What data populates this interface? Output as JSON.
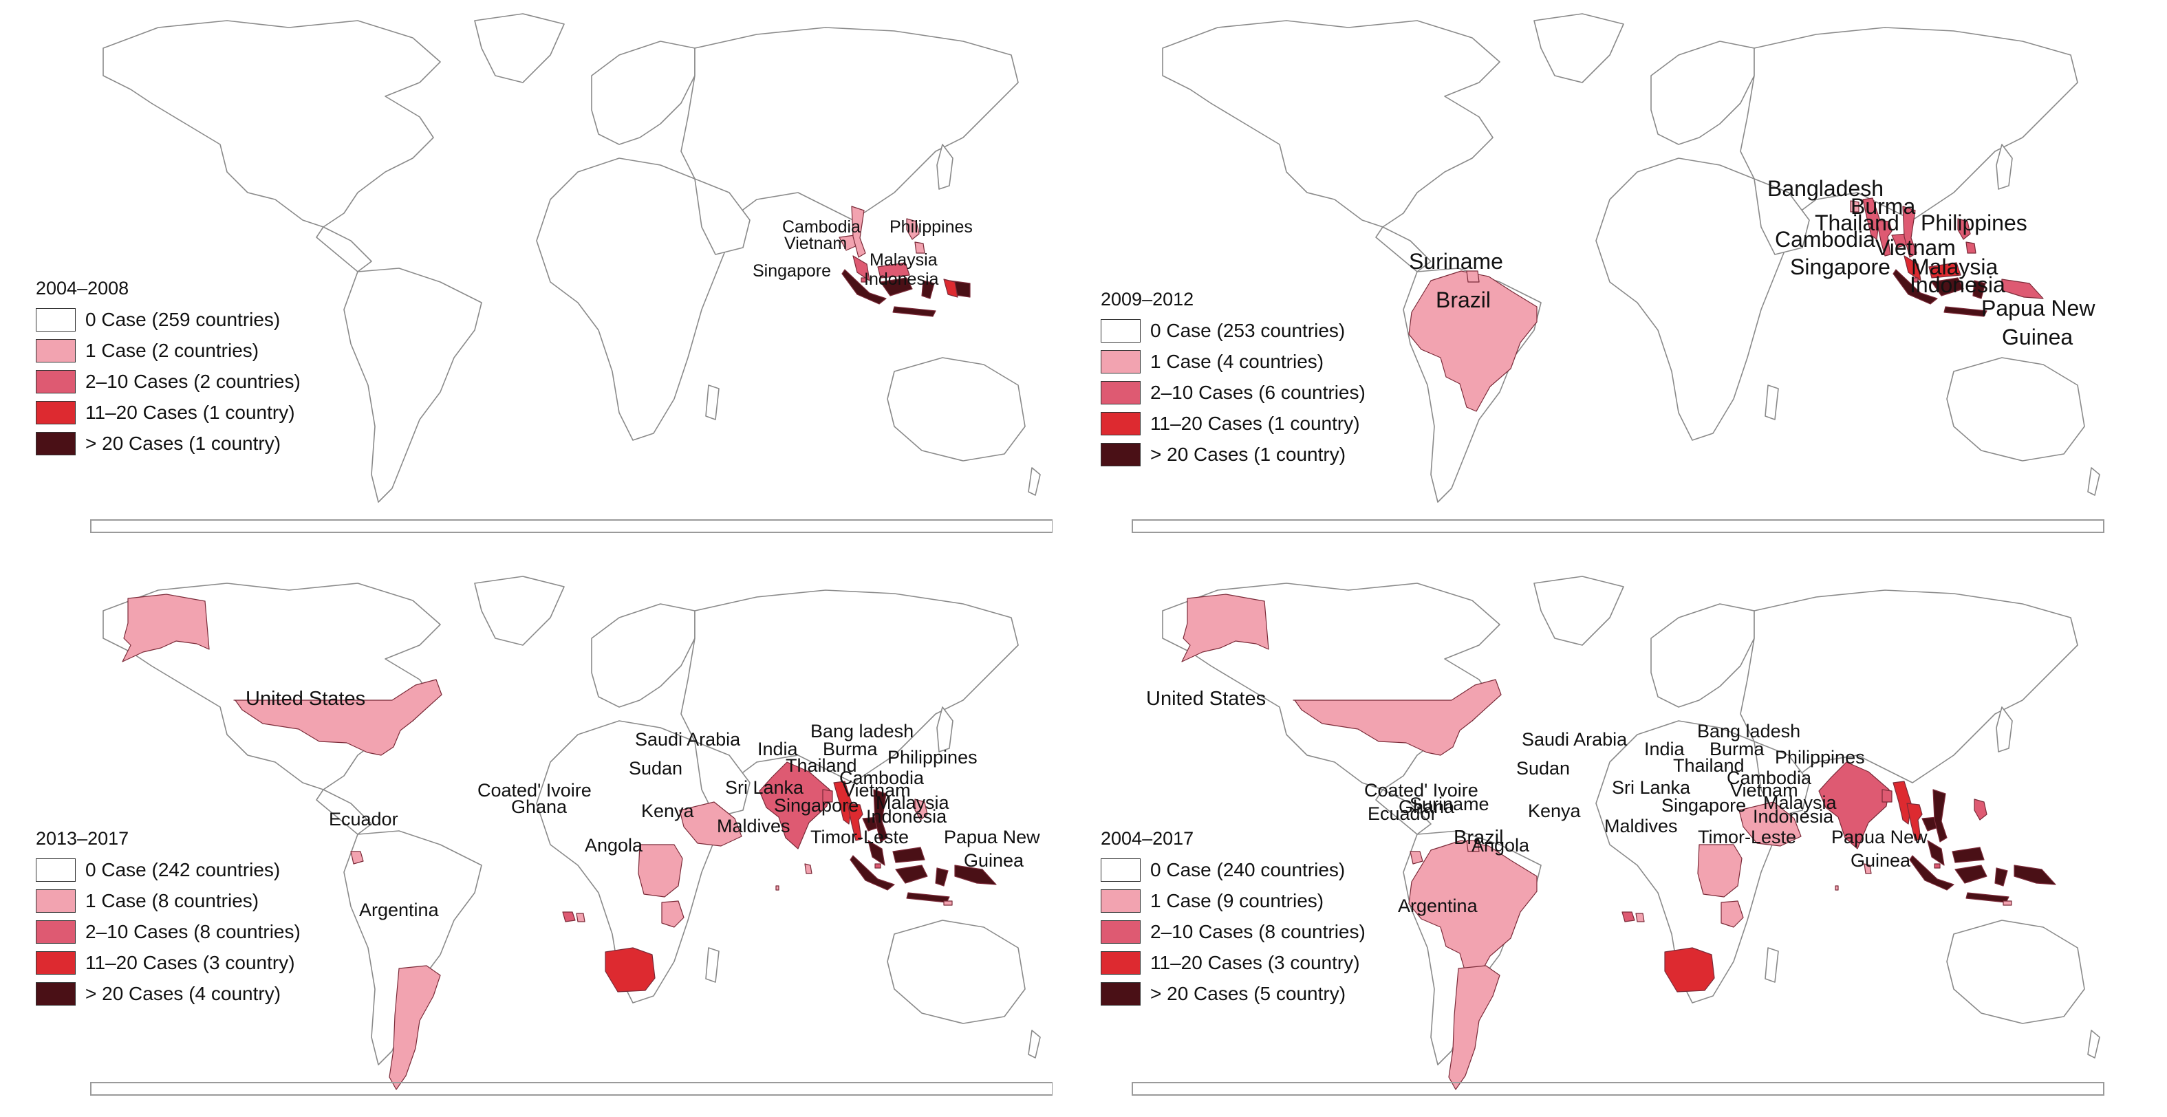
{
  "colors": {
    "c0": "#ffffff",
    "c1": "#f2a3b0",
    "c2": "#de5a72",
    "c3": "#dd2a30",
    "c4": "#4a1016"
  },
  "panels": [
    {
      "title": "2004–2008",
      "legend": [
        {
          "text": "0 Case (259 countries)",
          "class": "c0"
        },
        {
          "text": "1 Case (2 countries)",
          "class": "c1"
        },
        {
          "text": "2–10 Cases (2 countries)",
          "class": "c2"
        },
        {
          "text": "11–20 Cases (1 country)",
          "class": "c3"
        },
        {
          "text": "> 20 Cases (1 country)",
          "class": "c4"
        }
      ],
      "labels": [
        "Cambodia",
        "Philippines",
        "Vietnam",
        "Malaysia",
        "Singapore",
        "Indonesia"
      ]
    },
    {
      "title": "2009–2012",
      "legend": [
        {
          "text": "0 Case (253 countries)",
          "class": "c0"
        },
        {
          "text": "1 Case (4 countries)",
          "class": "c1"
        },
        {
          "text": "2–10 Cases (6 countries)",
          "class": "c2"
        },
        {
          "text": "11–20 Cases (1 country)",
          "class": "c3"
        },
        {
          "text": "> 20 Cases (1 country)",
          "class": "c4"
        }
      ],
      "labels": [
        "Suriname",
        "Brazil",
        "Bangladesh",
        "Burma",
        "Thailand",
        "Philippines",
        "Cambodia",
        "Vietnam",
        "Singapore",
        "Malaysia",
        "Indonesia",
        "Papua New",
        "Guinea"
      ]
    },
    {
      "title": "2013–2017",
      "legend": [
        {
          "text": "0 Case (242 countries)",
          "class": "c0"
        },
        {
          "text": "1 Case (8 countries)",
          "class": "c1"
        },
        {
          "text": "2–10 Cases (8 countries)",
          "class": "c2"
        },
        {
          "text": "11–20 Cases (3 country)",
          "class": "c3"
        },
        {
          "text": "> 20 Cases (4 country)",
          "class": "c4"
        }
      ],
      "labels": [
        "United States",
        "Saudi Arabia",
        "Bang ladesh",
        "India",
        "Burma",
        "Philippines",
        "Sudan",
        "Thailand",
        "Cambodia",
        "Coated' Ivoire",
        "Sri Lanka",
        "Vietnam",
        "Ghana",
        "Kenya",
        "Singapore",
        "Malaysia",
        "Ecuador",
        "Maldives",
        "Indonesia",
        "Timor-Leste",
        "Papua New",
        "Angola",
        "Guinea",
        "Argentina"
      ]
    },
    {
      "title": "2004–2017",
      "legend": [
        {
          "text": "0 Case (240 countries)",
          "class": "c0"
        },
        {
          "text": "1 Case (9 countries)",
          "class": "c1"
        },
        {
          "text": "2–10 Cases (8 countries)",
          "class": "c2"
        },
        {
          "text": "11–20 Cases (3 country)",
          "class": "c3"
        },
        {
          "text": "> 20 Cases (5 country)",
          "class": "c4"
        }
      ],
      "labels": [
        "United States",
        "Suriname",
        "Saudi Arabia",
        "Bang ladesh",
        "India",
        "Burma",
        "Philippines",
        "Sudan",
        "Thailand",
        "Cambodia",
        "Coated' Ivoire",
        "Sri Lanka",
        "Vietnam",
        "Ghana",
        "Kenya",
        "Singapore",
        "Malaysia",
        "Ecuador",
        "Brazil",
        "Maldives",
        "Indonesia",
        "Timor-Leste",
        "Papua New",
        "Angola",
        "Guinea",
        "Argentina"
      ]
    }
  ]
}
